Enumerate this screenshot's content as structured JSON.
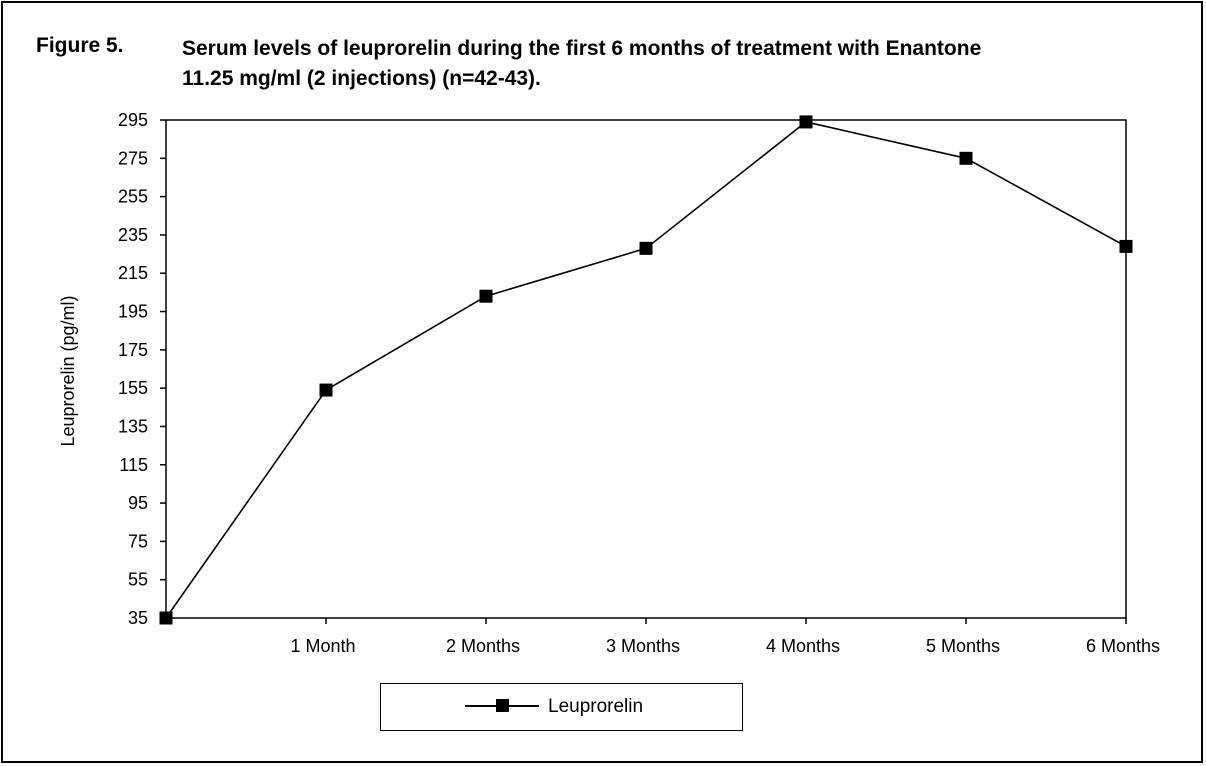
{
  "figure": {
    "label": "Figure 5.",
    "title_line1": "Serum levels of leuprorelin during the first 6 months of treatment with Enantone",
    "title_line2": "11.25 mg/ml (2 injections) (n=42-43)."
  },
  "chart_data": {
    "type": "line",
    "title": "Serum levels of leuprorelin during the first 6 months of treatment with Enantone 11.25 mg/ml (2 injections) (n=42-43).",
    "xlabel": "",
    "ylabel": "Leuprorelin   (pg/ml)",
    "categories": [
      "",
      "1 Month",
      "2 Months",
      "3 Months",
      "4 Months",
      "5 Months",
      "6 Months"
    ],
    "y_ticks": [
      35,
      55,
      75,
      95,
      115,
      135,
      155,
      175,
      195,
      215,
      235,
      255,
      275,
      295
    ],
    "ylim": [
      35,
      295
    ],
    "grid": false,
    "legend_position": "bottom",
    "series": [
      {
        "name": "Leuprorelin",
        "values": [
          35,
          154,
          203,
          228,
          294,
          275,
          229
        ],
        "color": "#000000",
        "marker": "square"
      }
    ]
  }
}
